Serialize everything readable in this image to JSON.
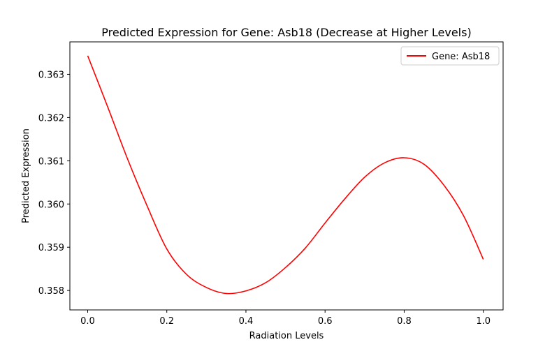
{
  "chart_data": {
    "type": "line",
    "title": "Predicted Expression for Gene: Asb18 (Decrease at Higher Levels)",
    "xlabel": "Radiation Levels",
    "ylabel": "Predicted Expression",
    "xlim": [
      -0.045,
      1.05
    ],
    "ylim": [
      0.35755,
      0.36375
    ],
    "xticks": [
      0.0,
      0.2,
      0.4,
      0.6,
      0.8,
      1.0
    ],
    "xtick_labels": [
      "0.0",
      "0.2",
      "0.4",
      "0.6",
      "0.8",
      "1.0"
    ],
    "yticks": [
      0.358,
      0.359,
      0.36,
      0.361,
      0.362,
      0.363
    ],
    "ytick_labels": [
      "0.358",
      "0.359",
      "0.360",
      "0.361",
      "0.362",
      "0.363"
    ],
    "grid": false,
    "legend_position": "top-right",
    "series": [
      {
        "name": "Gene: Asb18",
        "color": "#ff0000",
        "x": [
          0.0,
          0.05,
          0.1,
          0.15,
          0.2,
          0.25,
          0.3,
          0.35,
          0.4,
          0.45,
          0.5,
          0.55,
          0.6,
          0.65,
          0.7,
          0.75,
          0.8,
          0.85,
          0.9,
          0.95,
          1.0
        ],
        "y": [
          0.36343,
          0.36226,
          0.36106,
          0.35996,
          0.35896,
          0.35837,
          0.35807,
          0.35793,
          0.35799,
          0.35818,
          0.35853,
          0.35898,
          0.35956,
          0.36012,
          0.36062,
          0.36095,
          0.36107,
          0.36092,
          0.36044,
          0.35973,
          0.35872
        ]
      }
    ]
  }
}
